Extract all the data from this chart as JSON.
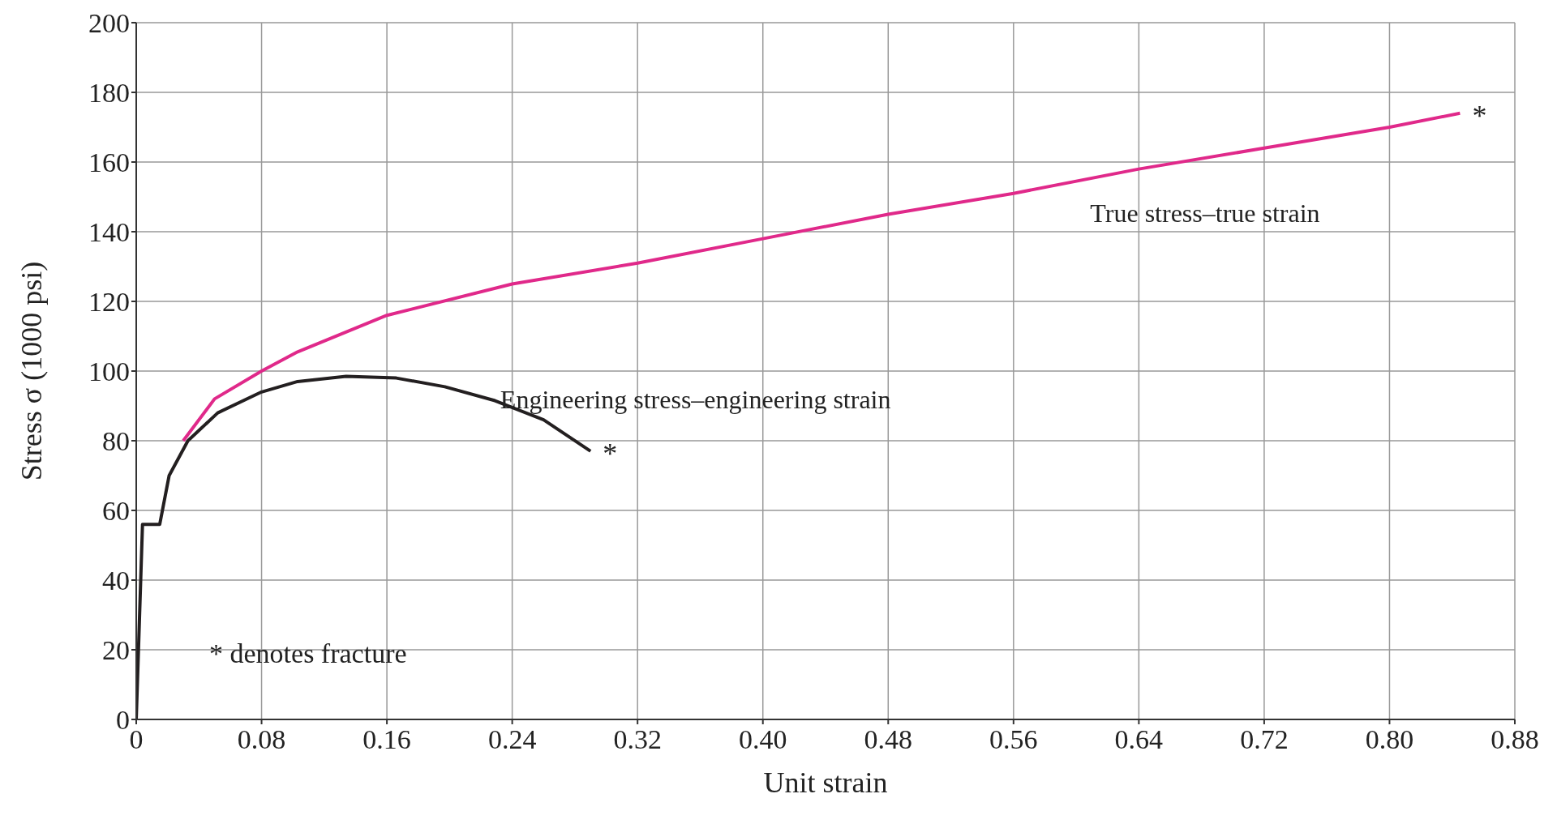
{
  "chart_data": {
    "type": "line",
    "xlabel": "Unit strain",
    "ylabel": "Stress σ (1000 psi)",
    "xlim": [
      0,
      0.88
    ],
    "ylim": [
      0,
      200
    ],
    "xticks": [
      0,
      {
        "value": 0.08,
        "label": "0.08"
      },
      {
        "value": 0.16,
        "label": "0.16"
      },
      {
        "value": 0.24,
        "label": "0.24"
      },
      {
        "value": 0.32,
        "label": "0.32"
      },
      {
        "value": 0.4,
        "label": "0.40"
      },
      {
        "value": 0.48,
        "label": "0.48"
      },
      {
        "value": 0.56,
        "label": "0.56"
      },
      {
        "value": 0.64,
        "label": "0.64"
      },
      {
        "value": 0.72,
        "label": "0.72"
      },
      {
        "value": 0.8,
        "label": "0.80"
      },
      {
        "value": 0.88,
        "label": "0.88"
      }
    ],
    "yticks": [
      0,
      20,
      40,
      60,
      80,
      100,
      120,
      140,
      160,
      180,
      200
    ],
    "grid": true,
    "marker": "none",
    "line_style": "solid",
    "series": [
      {
        "name": "Engineering stress–engineering strain",
        "color": "#231f20",
        "x": [
          0,
          0.004,
          0.015,
          0.021,
          0.033,
          0.052,
          0.08,
          0.103,
          0.134,
          0.166,
          0.197,
          0.229,
          0.26,
          0.29
        ],
        "values": [
          0,
          56,
          56,
          70,
          80,
          88,
          94,
          97,
          98.5,
          98,
          95.5,
          91.5,
          86,
          77
        ]
      },
      {
        "name": "True stress–true strain",
        "color": "#e0298a",
        "x": [
          0.03,
          0.05,
          0.08,
          0.103,
          0.16,
          0.24,
          0.32,
          0.4,
          0.48,
          0.56,
          0.64,
          0.72,
          0.8,
          0.845
        ],
        "values": [
          80,
          92,
          100,
          105.5,
          116,
          125,
          131,
          138,
          145,
          151,
          158,
          164,
          170,
          174
        ]
      }
    ],
    "annotations": [
      {
        "text": "*",
        "x": 0.29,
        "y": 77
      },
      {
        "text": "*",
        "x": 0.845,
        "y": 174
      },
      "* denotes fracture"
    ]
  }
}
